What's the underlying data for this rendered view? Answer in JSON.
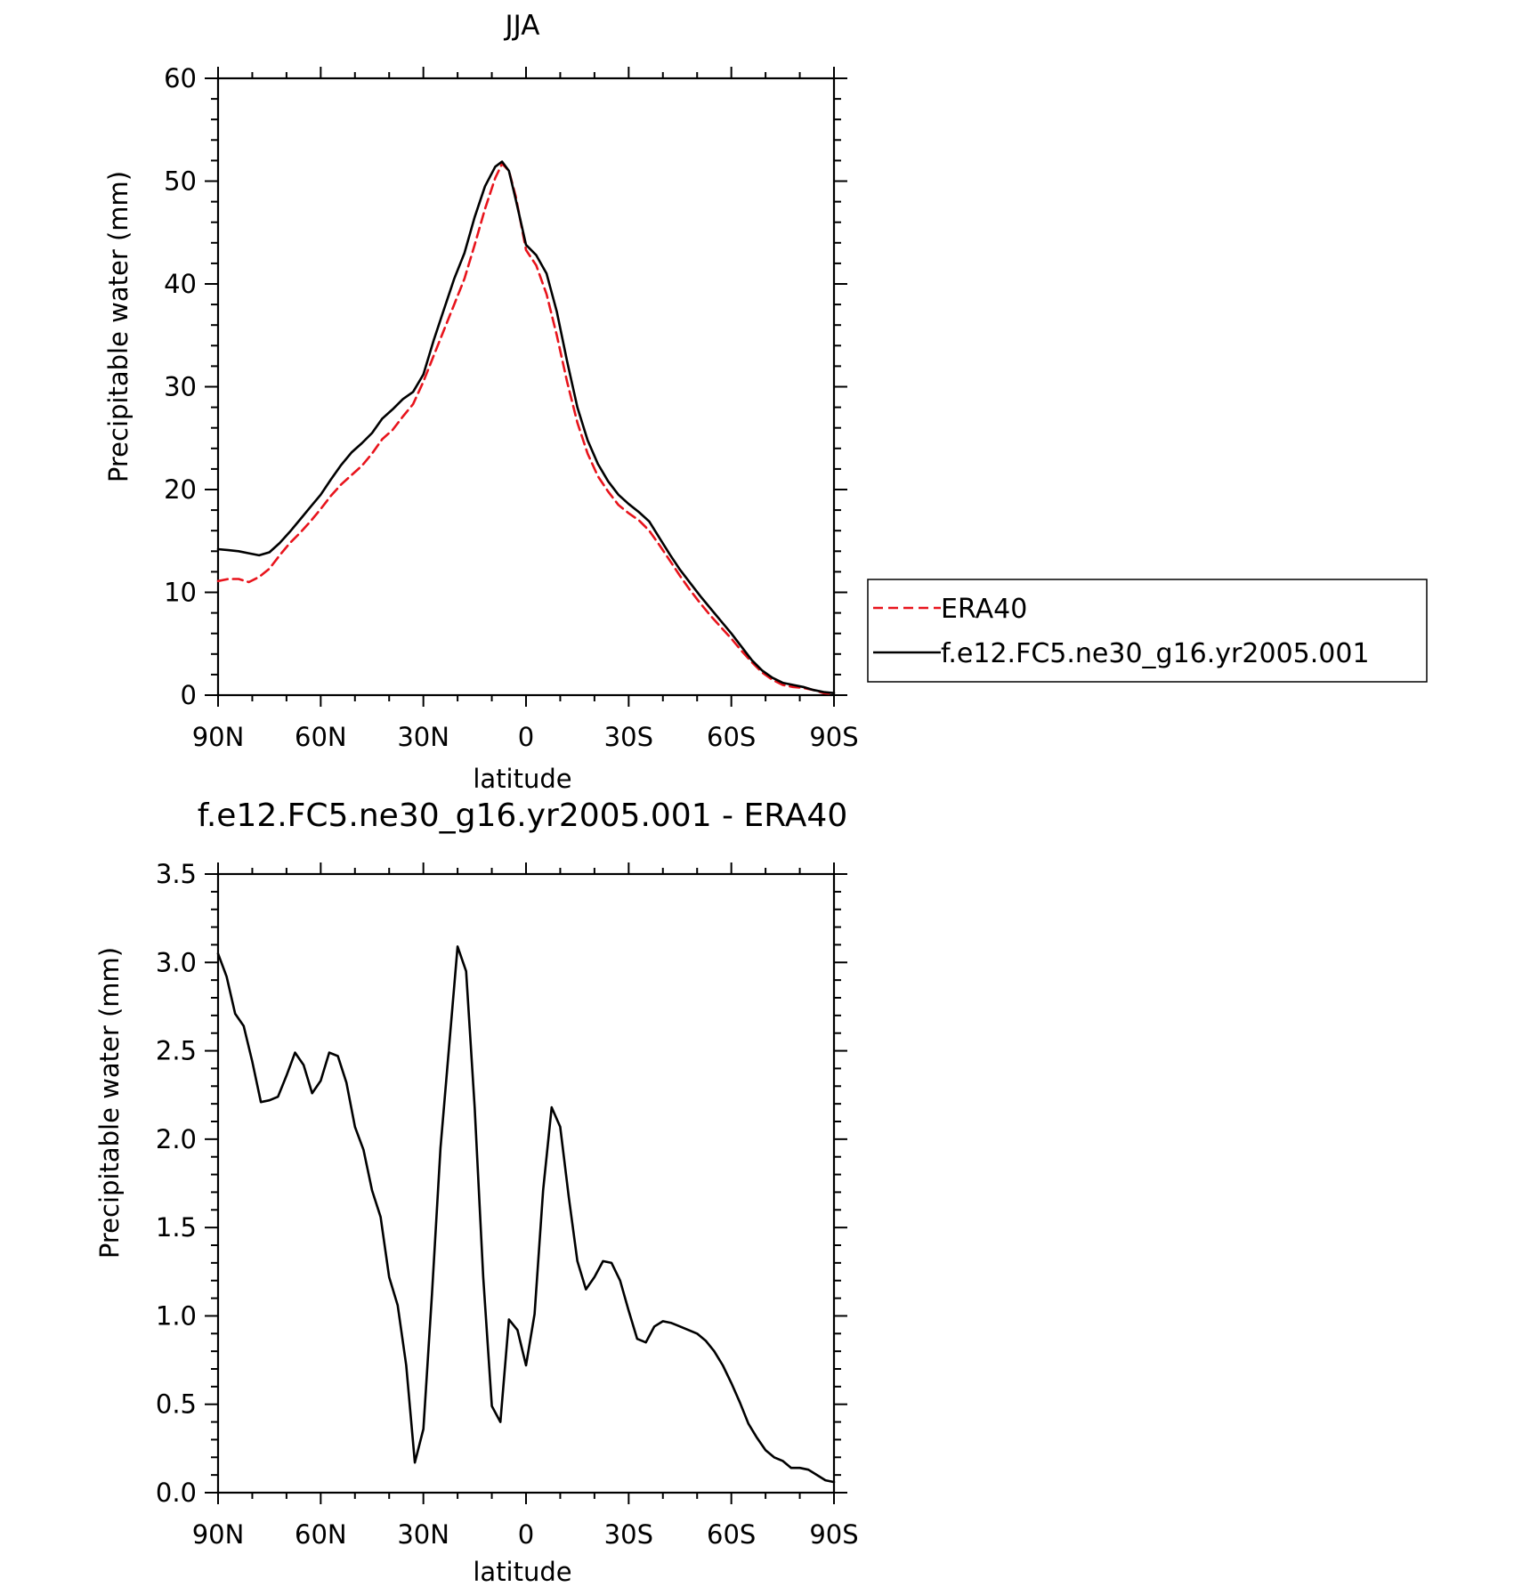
{
  "chart_data": [
    {
      "type": "line",
      "title": "JJA",
      "xlabel": "latitude",
      "ylabel": "Precipitable water (mm)",
      "xlim": [
        90,
        -90
      ],
      "ylim": [
        0,
        60
      ],
      "xticks": [
        {
          "value": 90,
          "label": "90N"
        },
        {
          "value": 60,
          "label": "60N"
        },
        {
          "value": 30,
          "label": "30N"
        },
        {
          "value": 0,
          "label": "0"
        },
        {
          "value": -30,
          "label": "30S"
        },
        {
          "value": -60,
          "label": "60S"
        },
        {
          "value": -90,
          "label": "90S"
        }
      ],
      "yticks": [
        0,
        10,
        20,
        30,
        40,
        50,
        60
      ],
      "ytick_labels": [
        "0",
        "10",
        "20",
        "30",
        "40",
        "50",
        "60"
      ],
      "legend": "right",
      "series": [
        {
          "name": "ERA40",
          "color": "#e8141c",
          "dash": "dashed",
          "points": [
            [
              90,
              11.1
            ],
            [
              87,
              11.3
            ],
            [
              84,
              11.3
            ],
            [
              81,
              11.0
            ],
            [
              78,
              11.5
            ],
            [
              75,
              12.3
            ],
            [
              72,
              13.6
            ],
            [
              69,
              14.8
            ],
            [
              66,
              15.8
            ],
            [
              63,
              16.9
            ],
            [
              60,
              18.1
            ],
            [
              57,
              19.4
            ],
            [
              54,
              20.5
            ],
            [
              51,
              21.4
            ],
            [
              48,
              22.3
            ],
            [
              45,
              23.5
            ],
            [
              42,
              24.9
            ],
            [
              39,
              25.8
            ],
            [
              36,
              27.1
            ],
            [
              33,
              28.3
            ],
            [
              30,
              30.5
            ],
            [
              27,
              33.0
            ],
            [
              24,
              35.5
            ],
            [
              21,
              38.0
            ],
            [
              18,
              40.5
            ],
            [
              15,
              43.8
            ],
            [
              12,
              47.3
            ],
            [
              9,
              50.3
            ],
            [
              7,
              51.7
            ],
            [
              5,
              51.0
            ],
            [
              3,
              48.5
            ],
            [
              0,
              43.3
            ],
            [
              -3,
              41.8
            ],
            [
              -6,
              39.0
            ],
            [
              -9,
              35.0
            ],
            [
              -12,
              30.5
            ],
            [
              -15,
              26.5
            ],
            [
              -18,
              23.5
            ],
            [
              -21,
              21.3
            ],
            [
              -24,
              19.8
            ],
            [
              -27,
              18.5
            ],
            [
              -30,
              17.7
            ],
            [
              -33,
              17.0
            ],
            [
              -36,
              16.0
            ],
            [
              -39,
              14.6
            ],
            [
              -42,
              13.1
            ],
            [
              -45,
              11.6
            ],
            [
              -48,
              10.2
            ],
            [
              -51,
              8.9
            ],
            [
              -54,
              7.7
            ],
            [
              -57,
              6.6
            ],
            [
              -60,
              5.5
            ],
            [
              -63,
              4.3
            ],
            [
              -66,
              3.2
            ],
            [
              -69,
              2.2
            ],
            [
              -72,
              1.5
            ],
            [
              -75,
              1.0
            ],
            [
              -78,
              0.8
            ],
            [
              -81,
              0.7
            ],
            [
              -84,
              0.5
            ],
            [
              -87,
              0.2
            ],
            [
              -90,
              0.1
            ]
          ]
        },
        {
          "name": "f.e12.FC5.ne30_g16.yr2005.001",
          "color": "#000000",
          "dash": "solid",
          "points": [
            [
              90,
              14.2
            ],
            [
              87,
              14.1
            ],
            [
              84,
              14.0
            ],
            [
              81,
              13.8
            ],
            [
              78,
              13.6
            ],
            [
              75,
              13.9
            ],
            [
              72,
              14.8
            ],
            [
              69,
              15.9
            ],
            [
              66,
              17.1
            ],
            [
              63,
              18.3
            ],
            [
              60,
              19.5
            ],
            [
              57,
              21.0
            ],
            [
              54,
              22.4
            ],
            [
              51,
              23.6
            ],
            [
              48,
              24.5
            ],
            [
              45,
              25.5
            ],
            [
              42,
              26.9
            ],
            [
              39,
              27.8
            ],
            [
              36,
              28.8
            ],
            [
              33,
              29.5
            ],
            [
              30,
              31.2
            ],
            [
              27,
              34.5
            ],
            [
              24,
              37.5
            ],
            [
              21,
              40.5
            ],
            [
              18,
              43.0
            ],
            [
              15,
              46.5
            ],
            [
              12,
              49.5
            ],
            [
              9,
              51.4
            ],
            [
              7,
              51.9
            ],
            [
              5,
              51.0
            ],
            [
              3,
              48.2
            ],
            [
              0,
              43.8
            ],
            [
              -3,
              42.8
            ],
            [
              -6,
              41.0
            ],
            [
              -9,
              37.3
            ],
            [
              -12,
              32.5
            ],
            [
              -15,
              28.0
            ],
            [
              -18,
              24.8
            ],
            [
              -21,
              22.5
            ],
            [
              -24,
              20.8
            ],
            [
              -27,
              19.5
            ],
            [
              -30,
              18.6
            ],
            [
              -33,
              17.8
            ],
            [
              -36,
              16.9
            ],
            [
              -39,
              15.3
            ],
            [
              -42,
              13.7
            ],
            [
              -45,
              12.2
            ],
            [
              -48,
              10.9
            ],
            [
              -51,
              9.6
            ],
            [
              -54,
              8.4
            ],
            [
              -57,
              7.2
            ],
            [
              -60,
              6.0
            ],
            [
              -63,
              4.7
            ],
            [
              -66,
              3.4
            ],
            [
              -69,
              2.4
            ],
            [
              -72,
              1.7
            ],
            [
              -75,
              1.2
            ],
            [
              -78,
              1.0
            ],
            [
              -81,
              0.8
            ],
            [
              -84,
              0.5
            ],
            [
              -87,
              0.3
            ],
            [
              -90,
              0.2
            ]
          ]
        }
      ]
    },
    {
      "type": "line",
      "title": "f.e12.FC5.ne30_g16.yr2005.001 - ERA40",
      "xlabel": "latitude",
      "ylabel": "Precipitable water (mm)",
      "xlim": [
        90,
        -90
      ],
      "ylim": [
        0,
        3.5
      ],
      "xticks": [
        {
          "value": 90,
          "label": "90N"
        },
        {
          "value": 60,
          "label": "60N"
        },
        {
          "value": 30,
          "label": "30N"
        },
        {
          "value": 0,
          "label": "0"
        },
        {
          "value": -30,
          "label": "30S"
        },
        {
          "value": -60,
          "label": "60S"
        },
        {
          "value": -90,
          "label": "90S"
        }
      ],
      "yticks": [
        0,
        0.5,
        1.0,
        1.5,
        2.0,
        2.5,
        3.0,
        3.5
      ],
      "ytick_labels": [
        "0.0",
        "0.5",
        "1.0",
        "1.5",
        "2.0",
        "2.5",
        "3.0",
        "3.5"
      ],
      "series": [
        {
          "color": "#000000",
          "dash": "solid",
          "points": [
            [
              90,
              3.05
            ],
            [
              87.5,
              2.92
            ],
            [
              85,
              2.71
            ],
            [
              82.5,
              2.64
            ],
            [
              80,
              2.44
            ],
            [
              77.5,
              2.21
            ],
            [
              75,
              2.22
            ],
            [
              72.5,
              2.24
            ],
            [
              70,
              2.36
            ],
            [
              67.5,
              2.49
            ],
            [
              65,
              2.42
            ],
            [
              62.5,
              2.26
            ],
            [
              60,
              2.33
            ],
            [
              57.5,
              2.49
            ],
            [
              55,
              2.47
            ],
            [
              52.5,
              2.32
            ],
            [
              50,
              2.07
            ],
            [
              47.5,
              1.94
            ],
            [
              45,
              1.71
            ],
            [
              42.5,
              1.56
            ],
            [
              40,
              1.22
            ],
            [
              37.5,
              1.06
            ],
            [
              35,
              0.72
            ],
            [
              32.5,
              0.17
            ],
            [
              30,
              0.36
            ],
            [
              27.5,
              1.12
            ],
            [
              25,
              1.95
            ],
            [
              22.5,
              2.52
            ],
            [
              20,
              3.09
            ],
            [
              17.5,
              2.95
            ],
            [
              15,
              2.18
            ],
            [
              12.5,
              1.22
            ],
            [
              10,
              0.49
            ],
            [
              7.5,
              0.4
            ],
            [
              5,
              0.98
            ],
            [
              2.5,
              0.92
            ],
            [
              0,
              0.72
            ],
            [
              -2.5,
              1.01
            ],
            [
              -5,
              1.71
            ],
            [
              -7.5,
              2.18
            ],
            [
              -10,
              2.07
            ],
            [
              -12.5,
              1.67
            ],
            [
              -15,
              1.31
            ],
            [
              -17.5,
              1.15
            ],
            [
              -20,
              1.22
            ],
            [
              -22.5,
              1.31
            ],
            [
              -25,
              1.3
            ],
            [
              -27.5,
              1.2
            ],
            [
              -30,
              1.03
            ],
            [
              -32.5,
              0.87
            ],
            [
              -35,
              0.85
            ],
            [
              -37.5,
              0.94
            ],
            [
              -40,
              0.97
            ],
            [
              -42.5,
              0.96
            ],
            [
              -45,
              0.94
            ],
            [
              -47.5,
              0.92
            ],
            [
              -50,
              0.9
            ],
            [
              -52.5,
              0.86
            ],
            [
              -55,
              0.8
            ],
            [
              -57.5,
              0.72
            ],
            [
              -60,
              0.62
            ],
            [
              -62.5,
              0.51
            ],
            [
              -65,
              0.39
            ],
            [
              -67.5,
              0.31
            ],
            [
              -70,
              0.24
            ],
            [
              -72.5,
              0.2
            ],
            [
              -75,
              0.18
            ],
            [
              -77.5,
              0.14
            ],
            [
              -80,
              0.14
            ],
            [
              -82.5,
              0.13
            ],
            [
              -85,
              0.1
            ],
            [
              -87.5,
              0.07
            ],
            [
              -90,
              0.06
            ]
          ]
        }
      ]
    }
  ]
}
